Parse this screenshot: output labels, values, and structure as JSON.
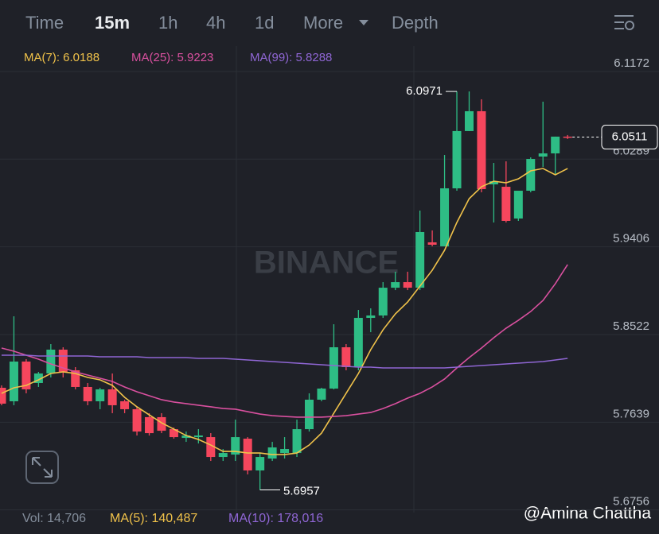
{
  "tabs": [
    "Time",
    "15m",
    "1h",
    "4h",
    "1d",
    "More",
    "Depth"
  ],
  "watermark": "BINANCE",
  "credit": "@Amina Chattha",
  "volume": [
    "Vol: 14,706",
    "MA(5): 140,487",
    "MA(10): 178,016"
  ],
  "chart_data": {
    "type": "candlestick",
    "up_color": "#2ebd85",
    "down_color": "#f6465d",
    "open": [
      5.7986,
      5.785,
      5.825,
      5.8034,
      5.813,
      5.837,
      5.8162,
      5.7994,
      5.785,
      5.797,
      5.785,
      5.777,
      5.769,
      5.769,
      5.7569,
      5.7481,
      5.7489,
      5.7489,
      5.7289,
      5.7313,
      5.7473,
      5.7153,
      5.7273,
      5.7329,
      5.7329,
      5.7569,
      5.7866,
      5.7978,
      5.8394,
      5.8194,
      5.869,
      5.8714,
      5.8994,
      5.905,
      5.8994,
      5.9451,
      5.9411,
      5.9995,
      6.0572,
      6.0772,
      6.0035,
      6.0011,
      5.9691,
      5.9971,
      6.0315,
      6.0347,
      6.0516
    ],
    "high": [
      5.801,
      5.8706,
      5.8274,
      5.8146,
      5.8426,
      5.8394,
      5.8194,
      5.8034,
      5.7986,
      5.813,
      5.7866,
      5.7794,
      5.773,
      5.773,
      5.7585,
      5.7545,
      5.7569,
      5.7529,
      5.7369,
      5.7665,
      5.7489,
      5.7329,
      5.7441,
      5.7489,
      5.7665,
      5.793,
      5.7986,
      5.8626,
      5.8426,
      5.877,
      5.8786,
      5.905,
      5.9155,
      5.9155,
      5.9771,
      5.9571,
      6.0331,
      6.0971,
      6.0971,
      6.0892,
      6.0251,
      6.0267,
      5.9971,
      6.0307,
      6.0868,
      6.0516,
      6.0532
    ],
    "low": [
      5.781,
      5.781,
      5.793,
      5.7994,
      5.809,
      5.809,
      5.797,
      5.781,
      5.777,
      5.773,
      5.773,
      5.7505,
      5.7505,
      5.7529,
      5.7473,
      5.7441,
      5.7425,
      5.7249,
      5.7249,
      5.7249,
      5.7113,
      5.6957,
      5.7249,
      5.7273,
      5.7289,
      5.7545,
      5.785,
      5.797,
      5.8162,
      5.8162,
      5.8546,
      5.869,
      5.897,
      5.897,
      5.897,
      5.9411,
      5.9411,
      5.9971,
      6.0572,
      5.9955,
      5.9651,
      5.9651,
      5.9667,
      5.9955,
      6.0211,
      6.0131,
      6.0492
    ],
    "close": [
      5.7826,
      5.825,
      5.797,
      5.813,
      5.837,
      5.8146,
      5.7994,
      5.785,
      5.797,
      5.781,
      5.777,
      5.7545,
      5.7529,
      5.7553,
      5.7489,
      5.7505,
      5.7505,
      5.7289,
      5.7329,
      5.7489,
      5.7153,
      5.7289,
      5.7385,
      5.7369,
      5.7569,
      5.7866,
      5.7978,
      5.8394,
      5.8194,
      5.869,
      5.8714,
      5.8994,
      5.905,
      5.8994,
      5.9555,
      5.9427,
      5.9995,
      6.0572,
      6.0772,
      5.9987,
      6.0067,
      5.9667,
      5.9971,
      6.0291,
      6.0347,
      6.0516,
      6.0511
    ],
    "series": [
      {
        "name": "MA(7): 6.0188",
        "color": "#f0c24a",
        "values": [
          5.793,
          5.7986,
          5.801,
          5.8066,
          5.813,
          5.8146,
          5.813,
          5.809,
          5.8066,
          5.801,
          5.789,
          5.7794,
          5.7713,
          5.7633,
          5.7569,
          5.7505,
          5.7465,
          5.7409,
          5.7345,
          5.7345,
          5.7329,
          5.7329,
          5.7313,
          5.7313,
          5.7329,
          5.7409,
          5.7529,
          5.773,
          5.793,
          5.813,
          5.837,
          5.857,
          5.873,
          5.885,
          5.901,
          5.917,
          5.9371,
          5.9651,
          5.9891,
          6.0011,
          6.0067,
          6.0051,
          6.0091,
          6.0171,
          6.0195,
          6.0131,
          6.0195
        ]
      },
      {
        "name": "MA(25): 5.9223",
        "color": "#d9509f",
        "values": [
          5.8386,
          5.8354,
          5.8314,
          5.8274,
          5.8226,
          5.8186,
          5.8146,
          5.8114,
          5.8082,
          5.805,
          5.7994,
          5.7946,
          5.7906,
          5.7866,
          5.7842,
          5.7826,
          5.781,
          5.7794,
          5.7777,
          5.777,
          5.7745,
          5.7721,
          5.7705,
          5.7697,
          5.769,
          5.769,
          5.769,
          5.7697,
          5.7705,
          5.7721,
          5.7737,
          5.7777,
          5.7826,
          5.7882,
          5.793,
          5.7994,
          5.8074,
          5.8186,
          5.829,
          5.8386,
          5.849,
          5.8586,
          5.8666,
          5.8754,
          5.8866,
          5.9034,
          5.9227
        ]
      },
      {
        "name": "MA(99): 5.8288",
        "color": "#8f66d4",
        "values": [
          5.8314,
          5.8314,
          5.8314,
          5.8306,
          5.8306,
          5.8306,
          5.8306,
          5.8306,
          5.8298,
          5.8298,
          5.8298,
          5.8298,
          5.829,
          5.829,
          5.829,
          5.829,
          5.8282,
          5.8282,
          5.8282,
          5.8274,
          5.8266,
          5.8258,
          5.825,
          5.8242,
          5.8234,
          5.8226,
          5.8218,
          5.821,
          5.8202,
          5.8194,
          5.8194,
          5.8186,
          5.8186,
          5.8186,
          5.8186,
          5.8186,
          5.8186,
          5.8194,
          5.8202,
          5.821,
          5.8218,
          5.8226,
          5.8234,
          5.8242,
          5.825,
          5.8266,
          5.8282
        ]
      }
    ],
    "ylim": [
      5.6729,
      6.1428
    ],
    "yticks": [
      6.1172,
      6.0289,
      5.9406,
      5.8522,
      5.7639,
      5.6756
    ],
    "grid": true
  }
}
